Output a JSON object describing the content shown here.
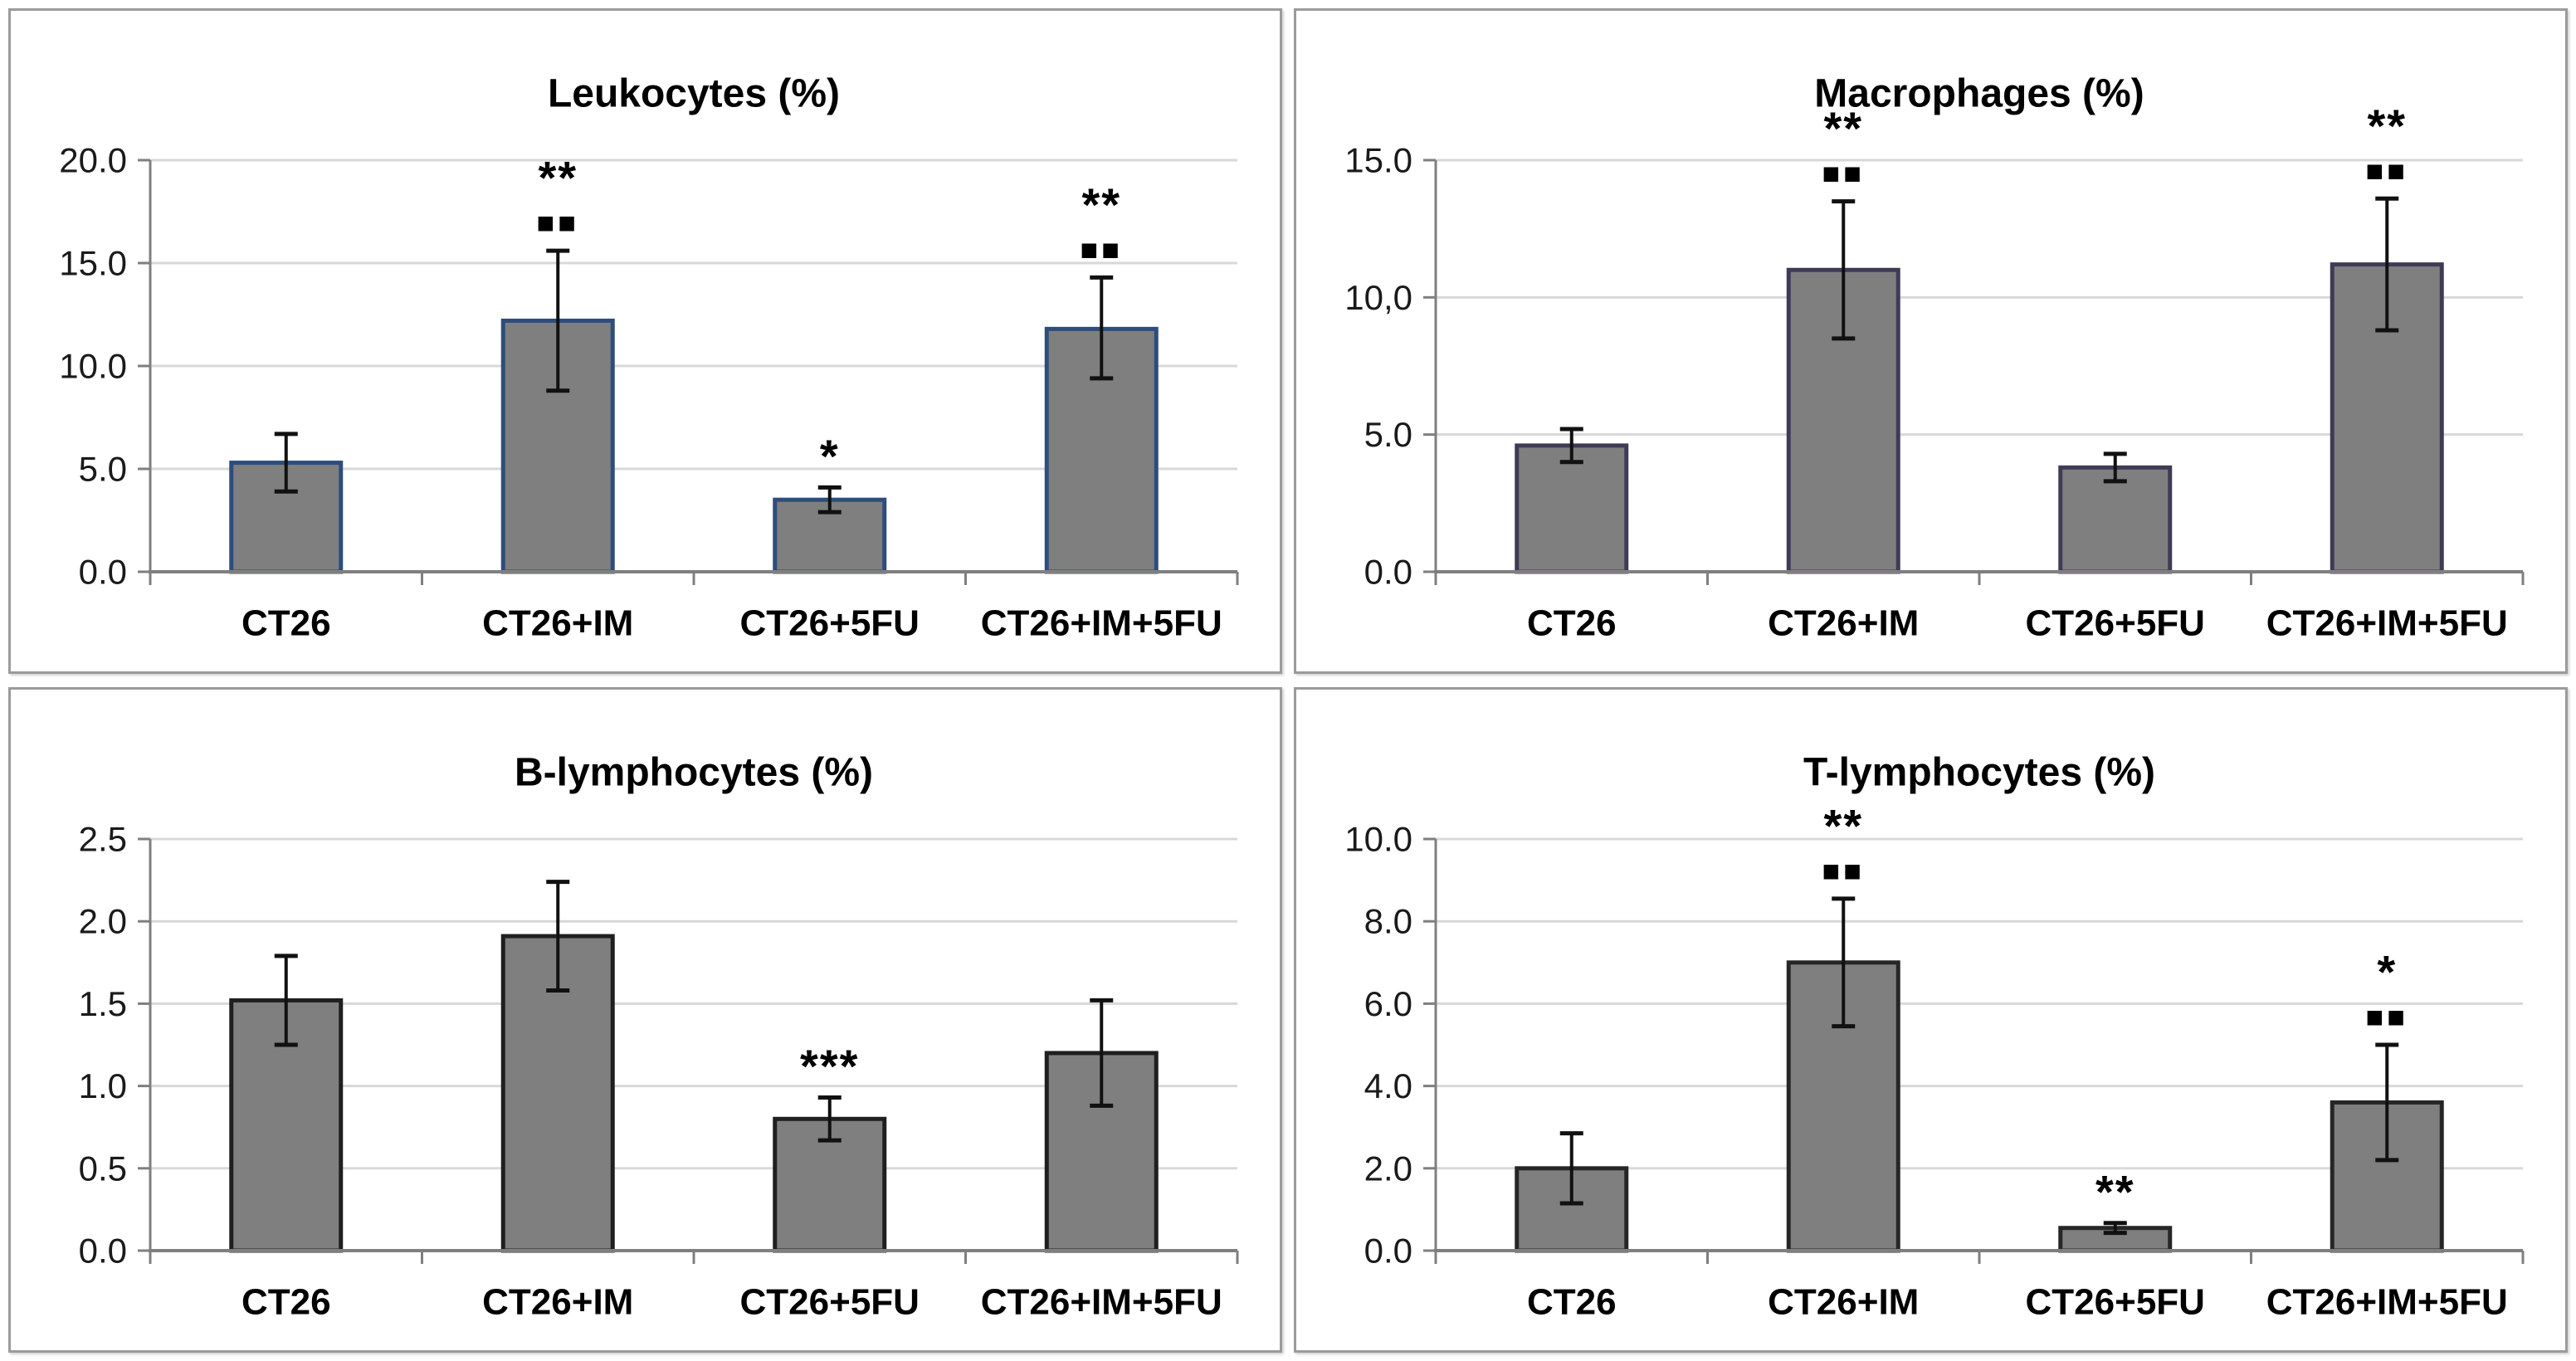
{
  "figure": {
    "background_color": "#ffffff",
    "panel_border_color": "#9b9b9b",
    "gridline_color": "#d8d8d8",
    "axis_color": "#7f7f7f",
    "error_bar_color": "#111111",
    "bar_fill_color": "#7f7f7f",
    "text_color": "#1a1a1a"
  },
  "chart_data": [
    {
      "type": "bar",
      "title": "Leukocytes (%)",
      "categories": [
        "CT26",
        "CT26+IM",
        "CT26+5FU",
        "CT26+IM+5FU"
      ],
      "values": [
        5.3,
        12.2,
        3.5,
        11.8
      ],
      "errors_minus": [
        1.4,
        3.4,
        0.6,
        2.4
      ],
      "errors_plus": [
        1.4,
        3.4,
        0.6,
        2.5
      ],
      "annotations": [
        [],
        [
          "**",
          "■■"
        ],
        [
          "*"
        ],
        [
          "**",
          "■■"
        ]
      ],
      "ylim": [
        0,
        20
      ],
      "ytick_step": 5,
      "ytick_labels": [
        "20.0",
        "15.0",
        "10.0",
        "5.0",
        "0.0"
      ],
      "xlabel": "",
      "ylabel": "",
      "grid": true,
      "legend": "none",
      "bar_border_color": "#2e4d7b"
    },
    {
      "type": "bar",
      "title": "Macrophages (%)",
      "categories": [
        "CT26",
        "CT26+IM",
        "CT26+5FU",
        "CT26+IM+5FU"
      ],
      "values": [
        4.6,
        11.0,
        3.8,
        11.2
      ],
      "errors_minus": [
        0.6,
        2.5,
        0.5,
        2.4
      ],
      "errors_plus": [
        0.6,
        2.5,
        0.5,
        2.4
      ],
      "annotations": [
        [],
        [
          "**",
          "■■"
        ],
        [],
        [
          "**",
          "■■"
        ]
      ],
      "ylim": [
        0,
        15
      ],
      "ytick_step": 5,
      "ytick_labels": [
        "15.0",
        "10,0",
        "5.0",
        "0.0"
      ],
      "xlabel": "",
      "ylabel": "",
      "grid": true,
      "legend": "none",
      "bar_border_color": "#413a55"
    },
    {
      "type": "bar",
      "title": "B-lymphocytes (%)",
      "categories": [
        "CT26",
        "CT26+IM",
        "CT26+5FU",
        "CT26+IM+5FU"
      ],
      "values": [
        1.52,
        1.91,
        0.8,
        1.2
      ],
      "errors_minus": [
        0.27,
        0.33,
        0.13,
        0.32
      ],
      "errors_plus": [
        0.27,
        0.33,
        0.13,
        0.32
      ],
      "annotations": [
        [],
        [],
        [
          "***"
        ],
        []
      ],
      "ylim": [
        0,
        2.5
      ],
      "ytick_step": 0.5,
      "ytick_labels": [
        "2.5",
        "2.0",
        "1.5",
        "1.0",
        "0.5",
        "0.0"
      ],
      "xlabel": "",
      "ylabel": "",
      "grid": true,
      "legend": "none",
      "bar_border_color": "#1f1f1f"
    },
    {
      "type": "bar",
      "title": "T-lymphocytes (%)",
      "categories": [
        "CT26",
        "CT26+IM",
        "CT26+5FU",
        "CT26+IM+5FU"
      ],
      "values": [
        2.0,
        7.0,
        0.55,
        3.6
      ],
      "errors_minus": [
        0.85,
        1.55,
        0.12,
        1.4
      ],
      "errors_plus": [
        0.85,
        1.55,
        0.12,
        1.4
      ],
      "annotations": [
        [],
        [
          "**",
          "■■"
        ],
        [
          "**"
        ],
        [
          "*",
          "■■"
        ]
      ],
      "ylim": [
        0,
        10
      ],
      "ytick_step": 2,
      "ytick_labels": [
        "10.0",
        "8.0",
        "6.0",
        "4.0",
        "2.0",
        "0.0"
      ],
      "xlabel": "",
      "ylabel": "",
      "grid": true,
      "legend": "none",
      "bar_border_color": "#262626"
    }
  ]
}
